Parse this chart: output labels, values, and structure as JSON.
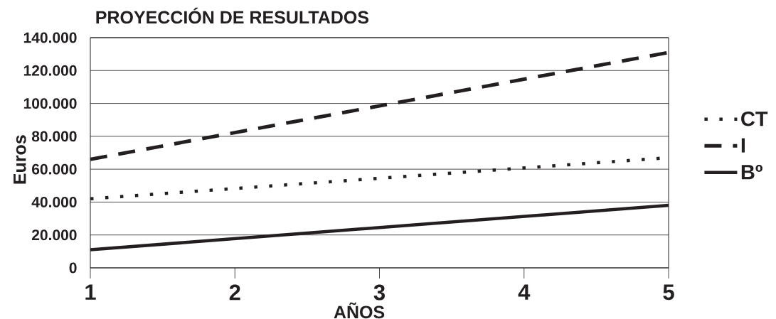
{
  "chart_data": {
    "type": "line",
    "title": "PROYECCIÓN DE RESULTADOS",
    "xlabel": "AÑOS",
    "ylabel": "Euros",
    "x": [
      1,
      5
    ],
    "xlim": [
      1,
      5
    ],
    "xticks": [
      1,
      2,
      3,
      4,
      5
    ],
    "ylim": [
      0,
      140000
    ],
    "yticks": [
      0,
      {
        "value": 20000,
        "label": "20.000"
      },
      {
        "value": 40000,
        "label": "40.000"
      },
      {
        "value": 60000,
        "label": "60.000"
      },
      {
        "value": 80000,
        "label": "80.000"
      },
      {
        "value": 100000,
        "label": "100.000"
      },
      {
        "value": 120000,
        "label": "120.000"
      },
      {
        "value": 140000,
        "label": "140.000"
      }
    ],
    "grid": "y",
    "legend": "right",
    "marker": "none",
    "series": [
      {
        "name": "CT",
        "color": "#231f20",
        "line_style": "dotted",
        "values": [
          42000,
          67000
        ]
      },
      {
        "name": "I",
        "color": "#231f20",
        "line_style": "dashed",
        "values": [
          66000,
          131000
        ]
      },
      {
        "name": "Bº",
        "color": "#231f20",
        "line_style": "solid",
        "values": [
          11000,
          38000
        ]
      }
    ]
  }
}
